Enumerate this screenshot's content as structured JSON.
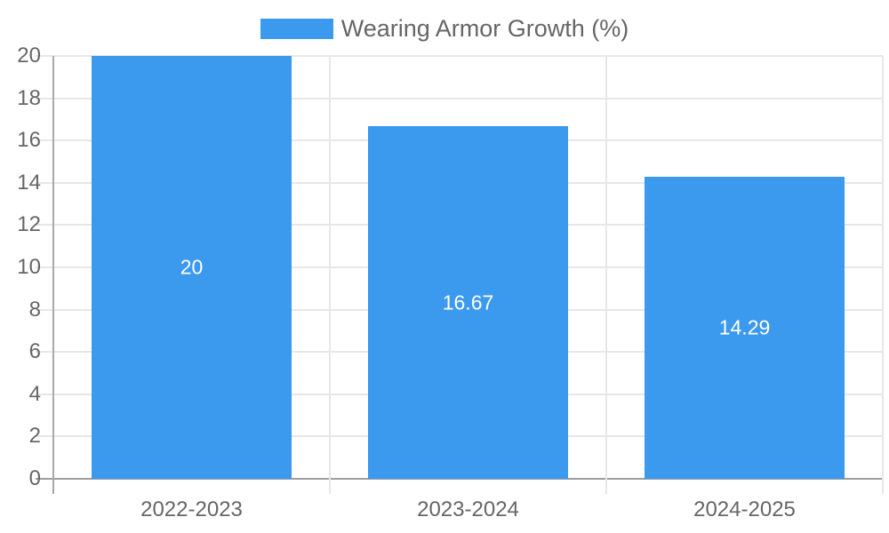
{
  "legend": {
    "label": "Wearing Armor Growth (%)",
    "position": "top"
  },
  "colors": {
    "bar": "#3B99EE",
    "grid": "#E7E7E7",
    "axis": "#9E9E9E",
    "y_axis_line": "#A9A9A9",
    "tick_text": "#666666",
    "value_label": "#FFFFFF",
    "background": "#FFFFFF"
  },
  "chart_data": {
    "type": "bar",
    "title": "",
    "xlabel": "",
    "ylabel": "",
    "categories": [
      "2022-2023",
      "2023-2024",
      "2024-2025"
    ],
    "series": [
      {
        "name": "Wearing Armor Growth (%)",
        "values": [
          20,
          16.67,
          14.29
        ]
      }
    ],
    "values": [
      20,
      16.67,
      14.29
    ],
    "value_labels": [
      "20",
      "16.67",
      "14.29"
    ],
    "ylim": [
      0,
      20
    ],
    "ytick_step": 2,
    "yticks": [
      0,
      2,
      4,
      6,
      8,
      10,
      12,
      14,
      16,
      18,
      20
    ],
    "grid": true,
    "legend_position": "top"
  }
}
